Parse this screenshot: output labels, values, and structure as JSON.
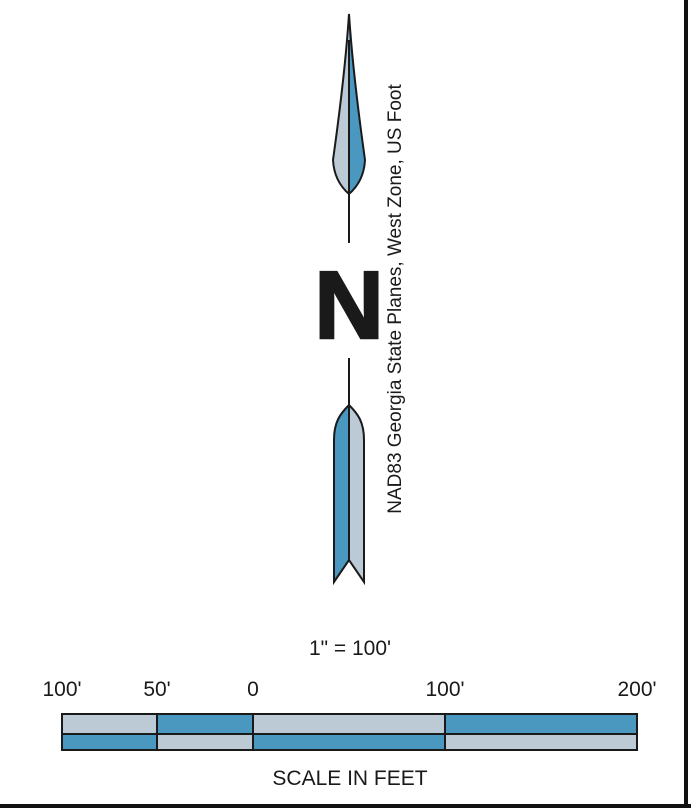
{
  "north_arrow": {
    "letter": "N",
    "projection_label": "NAD83 Georgia State Planes, West Zone, US Foot"
  },
  "scale_bar": {
    "ratio_label": "1\" = 100'",
    "tick_labels": [
      "100'",
      "50'",
      "0",
      "100'",
      "200'"
    ],
    "caption": "SCALE IN FEET"
  },
  "colors": {
    "accent_blue": "#4a97bf",
    "light_gray_blue": "#bccad6",
    "outline": "#1a1a1a",
    "frame_border": "#111111"
  }
}
